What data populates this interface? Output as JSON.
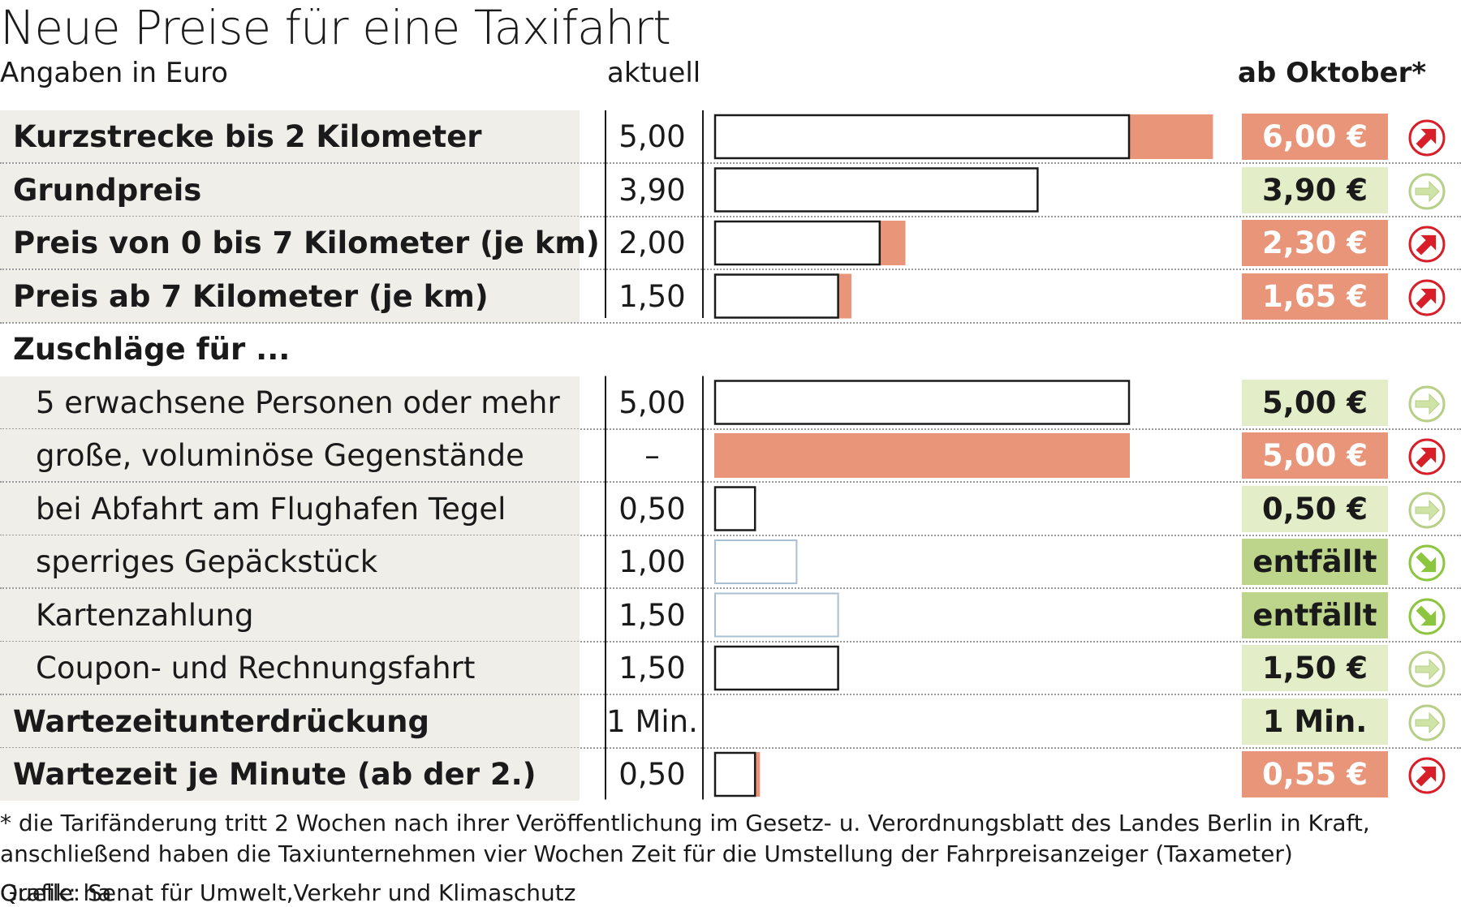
{
  "header": {
    "title": "Neue Preise für eine Taxifahrt",
    "subtitle": "Angaben in Euro",
    "col_current": "aktuell",
    "col_new": "ab Oktober*"
  },
  "colors": {
    "increase": "#e8957a",
    "unchanged": "#e3edc7",
    "removed": "#bcd58b",
    "removed_bar_border": "#a9bfd2",
    "bar_border": "#1a1a1a",
    "label_bg": "#efeee8",
    "arrow_up": "#d81e28",
    "arrow_same": "#cfe3a6",
    "arrow_down": "#8cc63f"
  },
  "chart_data": {
    "type": "bar",
    "title": "Neue Preise für eine Taxifahrt",
    "ylabel": "Angaben in Euro",
    "xlim": [
      0,
      6
    ],
    "series": [
      {
        "name": "aktuell"
      },
      {
        "name": "ab Oktober*"
      }
    ],
    "rows": [
      {
        "kind": "item",
        "style": "bold",
        "label": "Kurzstrecke bis 2 Kilometer",
        "current_label": "5,00",
        "current": 5.0,
        "new_label": "6,00 €",
        "new": 6.0,
        "status": "increase",
        "arrow": "arrow-up-right-icon"
      },
      {
        "kind": "item",
        "style": "bold",
        "label": "Grundpreis",
        "current_label": "3,90",
        "current": 3.9,
        "new_label": "3,90 €",
        "new": 3.9,
        "status": "unchanged",
        "arrow": "arrow-right-icon"
      },
      {
        "kind": "item",
        "style": "bold",
        "label": "Preis von 0 bis 7 Kilometer (je km)",
        "current_label": "2,00",
        "current": 2.0,
        "new_label": "2,30 €",
        "new": 2.3,
        "status": "increase",
        "arrow": "arrow-up-right-icon"
      },
      {
        "kind": "item",
        "style": "bold",
        "label": "Preis ab 7 Kilometer (je km)",
        "current_label": "1,50",
        "current": 1.5,
        "new_label": "1,65 €",
        "new": 1.65,
        "status": "increase",
        "arrow": "arrow-up-right-icon"
      },
      {
        "kind": "section",
        "label": "Zuschläge für ..."
      },
      {
        "kind": "item",
        "style": "normal",
        "label": "5 erwachsene Personen oder mehr",
        "current_label": "5,00",
        "current": 5.0,
        "new_label": "5,00 €",
        "new": 5.0,
        "status": "unchanged",
        "arrow": "arrow-right-icon"
      },
      {
        "kind": "item",
        "style": "normal",
        "label": "große, voluminöse Gegenstände",
        "current_label": "–",
        "current": 0,
        "new_label": "5,00 €",
        "new": 5.0,
        "status": "increase",
        "arrow": "arrow-up-right-icon"
      },
      {
        "kind": "item",
        "style": "normal",
        "label": "bei Abfahrt am Flughafen Tegel",
        "current_label": "0,50",
        "current": 0.5,
        "new_label": "0,50 €",
        "new": 0.5,
        "status": "unchanged",
        "arrow": "arrow-right-icon"
      },
      {
        "kind": "item",
        "style": "normal",
        "label": "sperriges Gepäckstück",
        "current_label": "1,00",
        "current": 1.0,
        "new_label": "entfällt",
        "new": 0,
        "status": "removed",
        "arrow": "arrow-down-right-icon"
      },
      {
        "kind": "item",
        "style": "normal",
        "label": "Kartenzahlung",
        "current_label": "1,50",
        "current": 1.5,
        "new_label": "entfällt",
        "new": 0,
        "status": "removed",
        "arrow": "arrow-down-right-icon"
      },
      {
        "kind": "item",
        "style": "normal",
        "label": "Coupon- und Rechnungsfahrt",
        "current_label": "1,50",
        "current": 1.5,
        "new_label": "1,50 €",
        "new": 1.5,
        "status": "unchanged",
        "arrow": "arrow-right-icon"
      },
      {
        "kind": "item",
        "style": "bold",
        "label": "Wartezeitunterdrückung",
        "current_label": "1 Min.",
        "current": null,
        "new_label": "1 Min.",
        "new": null,
        "status": "unchanged",
        "arrow": "arrow-right-icon"
      },
      {
        "kind": "item",
        "style": "bold",
        "label": "Wartezeit je Minute (ab der 2.)",
        "current_label": "0,50",
        "current": 0.5,
        "new_label": "0,55 €",
        "new": 0.55,
        "status": "increase",
        "arrow": "arrow-up-right-icon"
      }
    ]
  },
  "footer": {
    "note_line1": "* die Tarifänderung tritt 2 Wochen nach ihrer Veröffentlichung im Gesetz- u. Verordnungsblatt des Landes Berlin in Kraft,",
    "note_line2": "anschließend haben die Taxiunternehmen vier Wochen Zeit für die Umstellung der Fahrpreisanzeiger (Taxameter)",
    "credit": "Grafik: ha",
    "source": "Quelle: Senat für Umwelt,Verkehr und Klimaschutz"
  }
}
